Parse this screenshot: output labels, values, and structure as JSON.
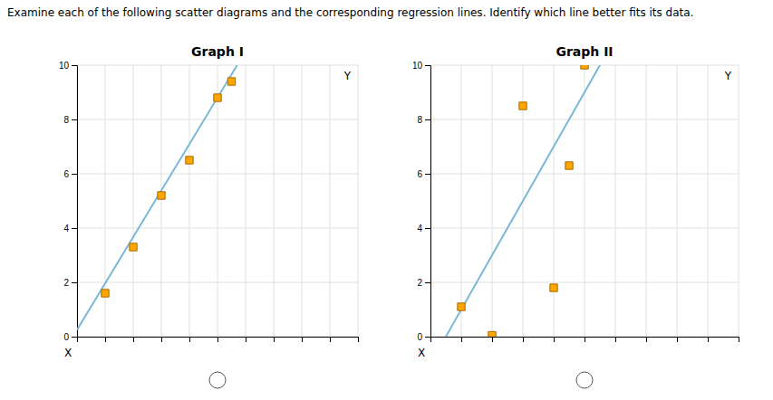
{
  "title": "Examine each of the following scatter diagrams and the corresponding regression lines. Identify which line better fits its data.",
  "chart_data": [
    {
      "type": "scatter",
      "title": "Graph I",
      "xlabel": "X",
      "ylabel": "Y",
      "series": [
        {
          "type": "scatter",
          "x": [
            1.0,
            2.0,
            3.0,
            4.0,
            5.0,
            5.5
          ],
          "values": [
            1.6,
            3.3,
            5.2,
            6.5,
            8.8,
            9.4
          ],
          "color": "#FFA500",
          "marker": "square"
        },
        {
          "type": "line",
          "x": [
            0.0,
            5.7
          ],
          "values": [
            0.25,
            10.0
          ],
          "color": "#7BB8D8",
          "line_style": "solid"
        }
      ],
      "xlim": [
        0,
        10
      ],
      "ylim": [
        0,
        10
      ],
      "xticks": [
        0,
        1,
        2,
        3,
        4,
        5,
        6,
        7,
        8,
        9,
        10
      ],
      "yticks": [
        0,
        2,
        4,
        6,
        8,
        10
      ],
      "grid": true,
      "tick_labels": "y"
    },
    {
      "type": "scatter",
      "title": "Graph II",
      "xlabel": "X",
      "ylabel": "Y",
      "series": [
        {
          "type": "scatter",
          "x": [
            1.0,
            2.0,
            3.0,
            4.0,
            4.5,
            5.0
          ],
          "values": [
            1.1,
            0.05,
            8.5,
            1.8,
            6.3,
            10.0
          ],
          "color": "#FFA500",
          "marker": "square"
        },
        {
          "type": "line",
          "x": [
            0.5,
            5.5
          ],
          "values": [
            0.0,
            10.0
          ],
          "color": "#7BB8D8",
          "line_style": "solid"
        }
      ],
      "xlim": [
        0,
        10
      ],
      "ylim": [
        0,
        10
      ],
      "xticks": [
        0,
        1,
        2,
        3,
        4,
        5,
        6,
        7,
        8,
        9,
        10
      ],
      "yticks": [
        0,
        2,
        4,
        6,
        8,
        10
      ],
      "grid": true,
      "tick_labels": "y"
    }
  ]
}
